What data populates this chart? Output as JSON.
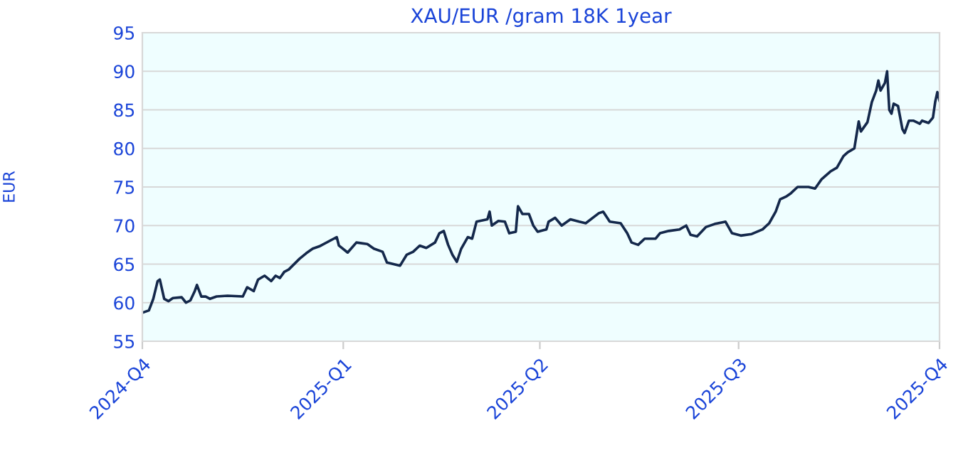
{
  "chart_data": {
    "type": "line",
    "title": "XAU/EUR /gram 18K 1year",
    "ylabel": "EUR",
    "x": [
      "2024-10-01",
      "2024-10-04",
      "2024-10-06",
      "2024-10-08",
      "2024-10-09",
      "2024-10-11",
      "2024-10-13",
      "2024-10-15",
      "2024-10-19",
      "2024-10-21",
      "2024-10-23",
      "2024-10-25",
      "2024-10-26",
      "2024-10-28",
      "2024-10-30",
      "2024-11-01",
      "2024-11-04",
      "2024-11-09",
      "2024-11-16",
      "2024-11-18",
      "2024-11-21",
      "2024-11-23",
      "2024-11-26",
      "2024-11-29",
      "2024-12-01",
      "2024-12-03",
      "2024-12-05",
      "2024-12-07",
      "2024-12-12",
      "2024-12-15",
      "2024-12-18",
      "2024-12-21",
      "2024-12-29",
      "2024-12-30",
      "2025-01-03",
      "2025-01-07",
      "2025-01-12",
      "2025-01-15",
      "2025-01-19",
      "2025-01-21",
      "2025-01-24",
      "2025-01-27",
      "2025-01-30",
      "2025-02-02",
      "2025-02-05",
      "2025-02-08",
      "2025-02-12",
      "2025-02-14",
      "2025-02-16",
      "2025-02-18",
      "2025-02-20",
      "2025-02-22",
      "2025-02-24",
      "2025-02-27",
      "2025-03-01",
      "2025-03-03",
      "2025-03-08",
      "2025-03-09",
      "2025-03-10",
      "2025-03-13",
      "2025-03-16",
      "2025-03-18",
      "2025-03-21",
      "2025-03-22",
      "2025-03-24",
      "2025-03-27",
      "2025-03-29",
      "2025-03-31",
      "2025-04-04",
      "2025-04-05",
      "2025-04-08",
      "2025-04-11",
      "2025-04-15",
      "2025-04-19",
      "2025-04-22",
      "2025-04-28",
      "2025-04-30",
      "2025-05-03",
      "2025-05-08",
      "2025-05-11",
      "2025-05-13",
      "2025-05-16",
      "2025-05-19",
      "2025-05-24",
      "2025-05-26",
      "2025-05-30",
      "2025-06-04",
      "2025-06-07",
      "2025-06-09",
      "2025-06-12",
      "2025-06-16",
      "2025-06-20",
      "2025-06-25",
      "2025-06-28",
      "2025-07-02",
      "2025-07-07",
      "2025-07-12",
      "2025-07-15",
      "2025-07-18",
      "2025-07-20",
      "2025-07-23",
      "2025-07-25",
      "2025-07-28",
      "2025-08-02",
      "2025-08-05",
      "2025-08-08",
      "2025-08-12",
      "2025-08-15",
      "2025-08-18",
      "2025-08-20",
      "2025-08-23",
      "2025-08-25",
      "2025-08-26",
      "2025-08-29",
      "2025-08-31",
      "2025-09-02",
      "2025-09-03",
      "2025-09-04",
      "2025-09-06",
      "2025-09-07",
      "2025-09-08",
      "2025-09-09",
      "2025-09-10",
      "2025-09-12",
      "2025-09-14",
      "2025-09-15",
      "2025-09-17",
      "2025-09-19",
      "2025-09-22",
      "2025-09-23",
      "2025-09-26",
      "2025-09-28",
      "2025-09-29",
      "2025-09-30",
      "2025-10-01"
    ],
    "series": [
      {
        "color": "#14284b",
        "values": [
          58.7,
          59.0,
          60.5,
          62.8,
          63.0,
          60.5,
          60.2,
          60.6,
          60.7,
          60.0,
          60.3,
          61.5,
          62.3,
          60.8,
          60.8,
          60.5,
          60.8,
          60.9,
          60.8,
          62.0,
          61.5,
          63.0,
          63.5,
          62.8,
          63.5,
          63.2,
          64.0,
          64.3,
          65.7,
          66.4,
          67.0,
          67.3,
          68.5,
          67.4,
          66.5,
          67.8,
          67.6,
          67.0,
          66.6,
          65.2,
          65.0,
          64.8,
          66.2,
          66.6,
          67.4,
          67.1,
          67.8,
          69.0,
          69.3,
          67.5,
          66.2,
          65.3,
          67.0,
          68.5,
          68.3,
          70.5,
          70.8,
          71.8,
          70.0,
          70.6,
          70.5,
          69.0,
          69.2,
          72.5,
          71.5,
          71.5,
          70.0,
          69.2,
          69.5,
          70.5,
          71.0,
          70.0,
          70.8,
          70.5,
          70.3,
          71.6,
          71.8,
          70.5,
          70.3,
          69.0,
          67.8,
          67.5,
          68.3,
          68.3,
          69.0,
          69.3,
          69.5,
          70.0,
          68.8,
          68.6,
          69.8,
          70.2,
          70.5,
          69.0,
          68.7,
          68.9,
          69.5,
          70.3,
          71.8,
          73.4,
          73.8,
          74.2,
          75.0,
          75.0,
          74.8,
          76.0,
          77.0,
          77.5,
          79.0,
          79.5,
          80.0,
          83.5,
          82.2,
          83.4,
          86.0,
          87.5,
          88.8,
          87.5,
          88.5,
          90.0,
          85.0,
          84.5,
          85.8,
          85.5,
          82.5,
          82.0,
          83.6,
          83.6,
          83.2,
          83.6,
          83.3,
          84.0,
          86.0,
          87.3,
          86.2
        ]
      }
    ],
    "xlim": [
      "2024-10-01",
      "2025-10-01"
    ],
    "xticks": [
      {
        "value": "2024-10-01",
        "label": "2024-Q4"
      },
      {
        "value": "2025-01-01",
        "label": "2025-Q1"
      },
      {
        "value": "2025-04-01",
        "label": "2025-Q2"
      },
      {
        "value": "2025-07-01",
        "label": "2025-Q3"
      },
      {
        "value": "2025-10-01",
        "label": "2025-Q4"
      }
    ],
    "ylim": [
      55,
      95
    ],
    "yticks": [
      55,
      60,
      65,
      70,
      75,
      80,
      85,
      90,
      95
    ],
    "grid": "y",
    "marker": "none",
    "line_style": "solid"
  }
}
